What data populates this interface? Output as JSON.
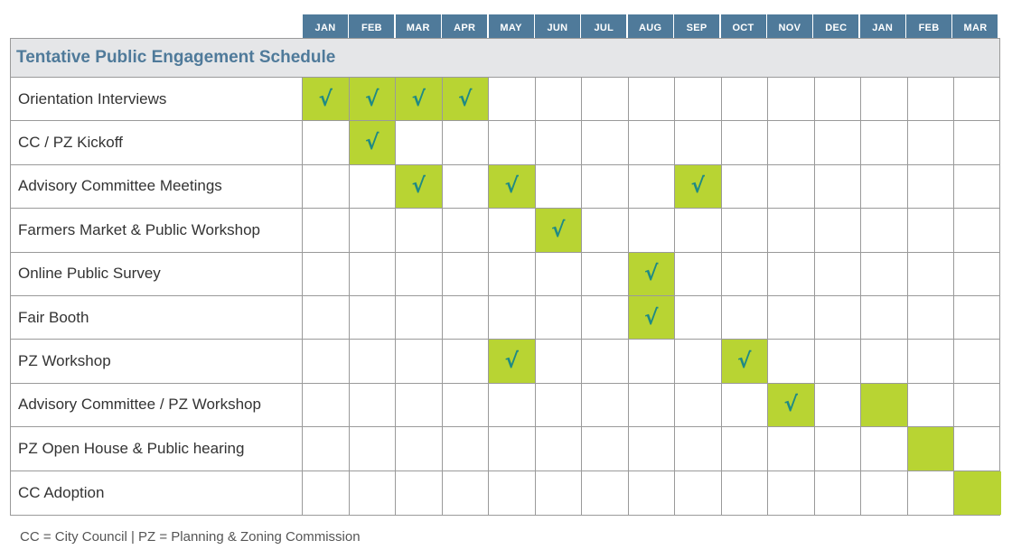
{
  "months": [
    "JAN",
    "FEB",
    "MAR",
    "APR",
    "MAY",
    "JUN",
    "JUL",
    "AUG",
    "SEP",
    "OCT",
    "NOV",
    "DEC",
    "JAN",
    "FEB",
    "MAR"
  ],
  "title": "Tentative Public Engagement Schedule",
  "check_glyph": "√",
  "colors": {
    "header_blue": "#4f7a9a",
    "active_green": "#b8d433",
    "check_teal": "#1f8a84",
    "title_bg": "#e5e6e8"
  },
  "rows": [
    {
      "label": "Orientation Interviews",
      "cells": [
        "check",
        "check",
        "check",
        "check",
        "",
        "",
        "",
        "",
        "",
        "",
        "",
        "",
        "",
        "",
        ""
      ]
    },
    {
      "label": "CC / PZ Kickoff",
      "cells": [
        "",
        "check",
        "",
        "",
        "",
        "",
        "",
        "",
        "",
        "",
        "",
        "",
        "",
        "",
        ""
      ]
    },
    {
      "label": "Advisory Committee Meetings",
      "cells": [
        "",
        "",
        "check",
        "",
        "check",
        "",
        "",
        "",
        "check",
        "",
        "",
        "",
        "",
        "",
        ""
      ]
    },
    {
      "label": "Farmers Market & Public Workshop",
      "cells": [
        "",
        "",
        "",
        "",
        "",
        "check",
        "",
        "",
        "",
        "",
        "",
        "",
        "",
        "",
        ""
      ]
    },
    {
      "label": "Online Public Survey",
      "cells": [
        "",
        "",
        "",
        "",
        "",
        "",
        "",
        "check",
        "",
        "",
        "",
        "",
        "",
        "",
        ""
      ]
    },
    {
      "label": "Fair Booth",
      "cells": [
        "",
        "",
        "",
        "",
        "",
        "",
        "",
        "check",
        "",
        "",
        "",
        "",
        "",
        "",
        ""
      ]
    },
    {
      "label": "PZ Workshop",
      "cells": [
        "",
        "",
        "",
        "",
        "check",
        "",
        "",
        "",
        "",
        "check",
        "",
        "",
        "",
        "",
        ""
      ]
    },
    {
      "label": "Advisory Committee / PZ Workshop",
      "cells": [
        "",
        "",
        "",
        "",
        "",
        "",
        "",
        "",
        "",
        "",
        "check",
        "",
        "fill",
        "",
        ""
      ]
    },
    {
      "label": "PZ Open House & Public hearing",
      "cells": [
        "",
        "",
        "",
        "",
        "",
        "",
        "",
        "",
        "",
        "",
        "",
        "",
        "",
        "fill",
        ""
      ]
    },
    {
      "label": "CC Adoption",
      "cells": [
        "",
        "",
        "",
        "",
        "",
        "",
        "",
        "",
        "",
        "",
        "",
        "",
        "",
        "",
        "fill"
      ]
    }
  ],
  "footnote": "CC = City Council  |  PZ = Planning & Zoning Commission"
}
